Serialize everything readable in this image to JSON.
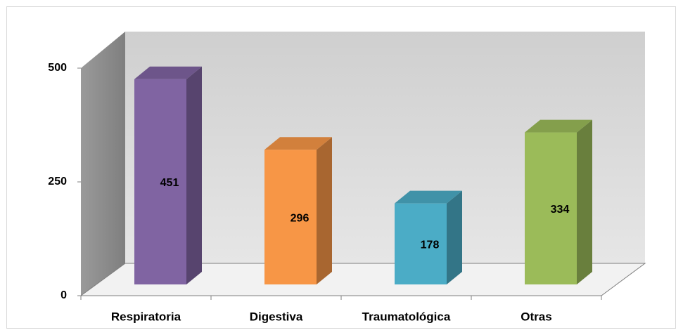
{
  "chart_data": {
    "type": "bar3d",
    "categories": [
      "Respiratoria",
      "Digestiva",
      "Traumatológica",
      "Otras"
    ],
    "values": [
      451,
      296,
      178,
      334
    ],
    "colors": [
      "#8064a2",
      "#f79646",
      "#4bacc6",
      "#9bbb59"
    ],
    "ylim": [
      0,
      500
    ],
    "yticks": [
      0,
      250,
      500
    ],
    "grid": false
  }
}
